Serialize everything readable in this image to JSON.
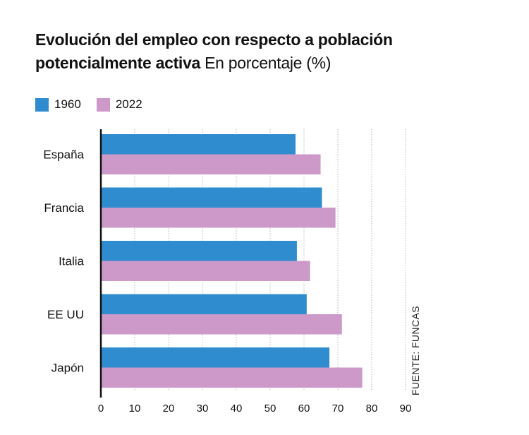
{
  "title": {
    "bold": "Evolución del empleo con respecto a población potencialmente activa",
    "normal": "En porcentaje (%)"
  },
  "legend": [
    {
      "label": "1960",
      "color": "#2f8ccf"
    },
    {
      "label": "2022",
      "color": "#cc99c9"
    }
  ],
  "source": "FUENTE: FUNCAS",
  "chart_data": {
    "type": "bar",
    "orientation": "horizontal",
    "categories": [
      "España",
      "Francia",
      "Italia",
      "EE UU",
      "Japón"
    ],
    "series": [
      {
        "name": "1960",
        "color": "#2f8ccf",
        "values": [
          57.5,
          65.3,
          57.9,
          60.8,
          67.5
        ]
      },
      {
        "name": "2022",
        "color": "#cc99c9",
        "values": [
          64.9,
          69.3,
          61.8,
          71.2,
          77.2
        ]
      }
    ],
    "xlim": [
      0,
      90
    ],
    "xticks": [
      0,
      10,
      20,
      30,
      40,
      50,
      60,
      70,
      80,
      90
    ],
    "grid": true,
    "legend_position": "top-left"
  }
}
